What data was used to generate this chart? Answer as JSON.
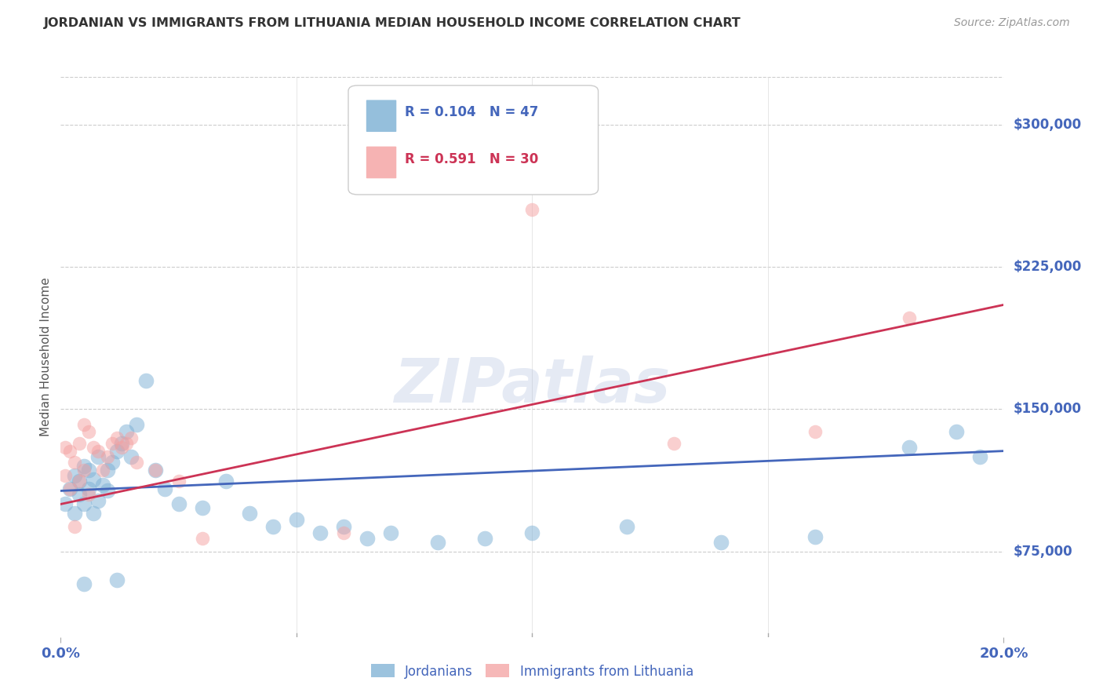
{
  "title": "JORDANIAN VS IMMIGRANTS FROM LITHUANIA MEDIAN HOUSEHOLD INCOME CORRELATION CHART",
  "source": "Source: ZipAtlas.com",
  "ylabel": "Median Household Income",
  "y_ticks": [
    75000,
    150000,
    225000,
    300000
  ],
  "y_tick_labels": [
    "$75,000",
    "$150,000",
    "$225,000",
    "$300,000"
  ],
  "x_min": 0.0,
  "x_max": 0.2,
  "y_min": 30000,
  "y_max": 325000,
  "blue_color": "#7BAFD4",
  "pink_color": "#F4A0A0",
  "blue_line_color": "#4466BB",
  "pink_line_color": "#CC3355",
  "watermark": "ZIPatlas",
  "legend_r_blue": "0.104",
  "legend_n_blue": "47",
  "legend_r_pink": "0.591",
  "legend_n_pink": "30",
  "jordanians_label": "Jordanians",
  "lithuania_label": "Immigrants from Lithuania",
  "blue_scatter_x": [
    0.001,
    0.002,
    0.003,
    0.003,
    0.004,
    0.004,
    0.005,
    0.005,
    0.005,
    0.006,
    0.006,
    0.007,
    0.007,
    0.008,
    0.008,
    0.009,
    0.01,
    0.01,
    0.011,
    0.012,
    0.012,
    0.013,
    0.014,
    0.015,
    0.016,
    0.018,
    0.02,
    0.022,
    0.025,
    0.03,
    0.035,
    0.04,
    0.045,
    0.05,
    0.055,
    0.06,
    0.065,
    0.07,
    0.08,
    0.09,
    0.1,
    0.12,
    0.14,
    0.16,
    0.18,
    0.19,
    0.195
  ],
  "blue_scatter_y": [
    100000,
    108000,
    115000,
    95000,
    112000,
    105000,
    120000,
    100000,
    58000,
    118000,
    108000,
    113000,
    95000,
    125000,
    102000,
    110000,
    118000,
    107000,
    122000,
    128000,
    60000,
    132000,
    138000,
    125000,
    142000,
    165000,
    118000,
    108000,
    100000,
    98000,
    112000,
    95000,
    88000,
    92000,
    85000,
    88000,
    82000,
    85000,
    80000,
    82000,
    85000,
    88000,
    80000,
    83000,
    130000,
    138000,
    125000
  ],
  "pink_scatter_x": [
    0.001,
    0.001,
    0.002,
    0.002,
    0.003,
    0.003,
    0.004,
    0.004,
    0.005,
    0.005,
    0.006,
    0.006,
    0.007,
    0.008,
    0.009,
    0.01,
    0.011,
    0.012,
    0.013,
    0.014,
    0.015,
    0.016,
    0.02,
    0.025,
    0.03,
    0.06,
    0.1,
    0.13,
    0.16,
    0.18
  ],
  "pink_scatter_y": [
    130000,
    115000,
    128000,
    108000,
    122000,
    88000,
    132000,
    112000,
    142000,
    118000,
    138000,
    105000,
    130000,
    128000,
    118000,
    125000,
    132000,
    135000,
    130000,
    132000,
    135000,
    122000,
    118000,
    112000,
    82000,
    85000,
    255000,
    132000,
    138000,
    198000
  ],
  "blue_trend_x": [
    0.0,
    0.2
  ],
  "blue_trend_y": [
    107000,
    128000
  ],
  "pink_trend_x": [
    0.0,
    0.2
  ],
  "pink_trend_y": [
    100000,
    205000
  ],
  "dot_size_blue": 200,
  "dot_size_pink": 160,
  "dot_alpha": 0.5,
  "tick_color": "#4466BB",
  "label_color": "#555555",
  "grid_color": "#CCCCCC",
  "title_color": "#333333",
  "source_color": "#999999"
}
